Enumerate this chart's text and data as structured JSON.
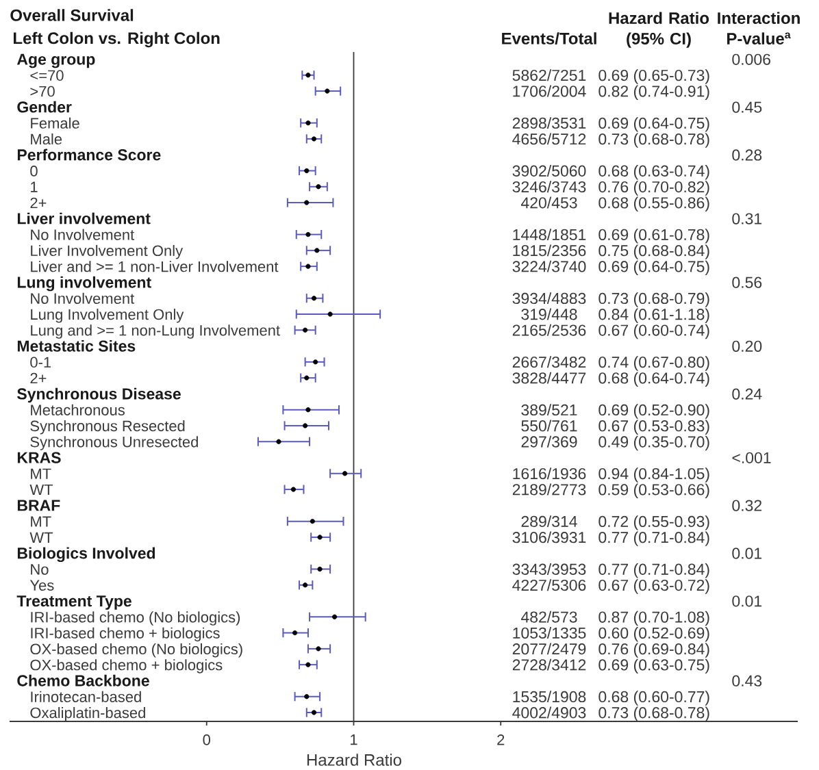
{
  "chart_data": {
    "type": "scatter",
    "orientation": "horizontal",
    "title": "Overall Survival",
    "subtitle": "Left Colon vs. Right Colon",
    "xlabel": "Hazard Ratio",
    "categories": [
      "Age group",
      "<=70",
      ">70",
      "Gender",
      "Female",
      "Male",
      "Performance Score",
      "0",
      "1",
      "2+",
      "Liver involvement",
      "No Involvement",
      "Liver Involvement Only",
      "Liver and >= 1 non-Liver Involvement",
      "Lung involvement",
      "No Involvement",
      "Lung Involvement Only",
      "Lung and >= 1 non-Lung Involvement",
      "Metastatic Sites",
      "0-1",
      "2+",
      "Synchronous Disease",
      "Metachronous",
      "Synchronous Resected",
      "Synchronous Unresected",
      "KRAS",
      "MT",
      "WT",
      "BRAF",
      "MT",
      "WT",
      "Biologics Involved",
      "No",
      "Yes",
      "Treatment Type",
      "IRI-based chemo (No biologics)",
      "IRI-based chemo + biologics",
      "OX-based chemo (No biologics)",
      "OX-based chemo + biologics",
      "Chemo Backbone",
      "Irinotecan-based",
      "Oxaliplatin-based"
    ],
    "values": [
      null,
      0.69,
      0.82,
      null,
      0.69,
      0.73,
      null,
      0.68,
      0.76,
      0.68,
      null,
      0.69,
      0.75,
      0.69,
      null,
      0.73,
      0.84,
      0.67,
      null,
      0.74,
      0.68,
      null,
      0.69,
      0.67,
      0.49,
      null,
      0.94,
      0.59,
      null,
      0.72,
      0.77,
      null,
      0.77,
      0.67,
      null,
      0.87,
      0.6,
      0.76,
      0.69,
      null,
      0.68,
      0.73
    ],
    "errors": [
      null,
      [
        0.65,
        0.73
      ],
      [
        0.74,
        0.91
      ],
      null,
      [
        0.64,
        0.75
      ],
      [
        0.68,
        0.78
      ],
      null,
      [
        0.63,
        0.74
      ],
      [
        0.7,
        0.82
      ],
      [
        0.55,
        0.86
      ],
      null,
      [
        0.61,
        0.78
      ],
      [
        0.68,
        0.84
      ],
      [
        0.64,
        0.75
      ],
      null,
      [
        0.68,
        0.79
      ],
      [
        0.61,
        1.18
      ],
      [
        0.6,
        0.74
      ],
      null,
      [
        0.67,
        0.8
      ],
      [
        0.64,
        0.74
      ],
      null,
      [
        0.52,
        0.9
      ],
      [
        0.53,
        0.83
      ],
      [
        0.35,
        0.7
      ],
      null,
      [
        0.84,
        1.05
      ],
      [
        0.53,
        0.66
      ],
      null,
      [
        0.55,
        0.93
      ],
      [
        0.71,
        0.84
      ],
      null,
      [
        0.71,
        0.84
      ],
      [
        0.63,
        0.72
      ],
      null,
      [
        0.7,
        1.08
      ],
      [
        0.52,
        0.69
      ],
      [
        0.69,
        0.84
      ],
      [
        0.63,
        0.75
      ],
      null,
      [
        0.6,
        0.77
      ],
      [
        0.68,
        0.78
      ]
    ],
    "annotations": [
      "Events/Total",
      "Hazard Ratio (95% CI)",
      "Interaction P-value$^{a}$",
      "0.006",
      "5862/7251",
      "0.69 (0.65-0.73)",
      "1706/2004",
      "0.82 (0.74-0.91)",
      "0.45",
      "2898/3531",
      "0.69 (0.64-0.75)",
      "4656/5712",
      "0.73 (0.68-0.78)",
      "0.28",
      "3902/5060",
      "0.68 (0.63-0.74)",
      "3246/3743",
      "0.76 (0.70-0.82)",
      "420/453",
      "0.68 (0.55-0.86)",
      "0.31",
      "1448/1851",
      "0.69 (0.61-0.78)",
      "1815/2356",
      "0.75 (0.68-0.84)",
      "3224/3740",
      "0.69 (0.64-0.75)",
      "0.56",
      "3934/4883",
      "0.73 (0.68-0.79)",
      "319/448",
      "0.84 (0.61-1.18)",
      "2165/2536",
      "0.67 (0.60-0.74)",
      "0.20",
      "2667/3482",
      "0.74 (0.67-0.80)",
      "3828/4477",
      "0.68 (0.64-0.74)",
      "0.24",
      "389/521",
      "0.69 (0.52-0.90)",
      "550/761",
      "0.67 (0.53-0.83)",
      "297/369",
      "0.49 (0.35-0.70)",
      "<.001",
      "1616/1936",
      "0.94 (0.84-1.05)",
      "2189/2773",
      "0.59 (0.53-0.66)",
      "0.32",
      "289/314",
      "0.72 (0.55-0.93)",
      "3106/3931",
      "0.77 (0.71-0.84)",
      "0.01",
      "3343/3953",
      "0.77 (0.71-0.84)",
      "4227/5306",
      "0.67 (0.63-0.72)",
      "0.01",
      "482/573",
      "0.87 (0.70-1.08)",
      "1053/1335",
      "0.60 (0.52-0.69)",
      "2077/2479",
      "0.76 (0.69-0.84)",
      "2728/3412",
      "0.69 (0.63-0.75)",
      "0.43",
      "1535/1908",
      "0.68 (0.60-0.77)",
      "4002/4903",
      "0.73 (0.68-0.78)"
    ],
    "color": "#000000",
    "xlim": [
      -1.34,
      4.02
    ],
    "xticks": [
      0,
      1,
      2
    ],
    "ref_lines": [
      {
        "axis": "x",
        "value": 1,
        "color": "#3a3a3a"
      }
    ]
  }
}
